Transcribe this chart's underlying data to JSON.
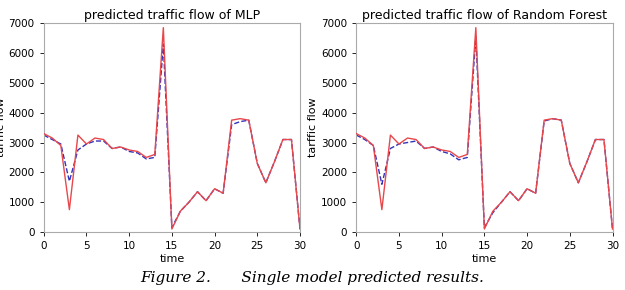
{
  "title_mlp": "predicted traffic flow of MLP",
  "title_rf": "predicted traffic flow of Random Forest",
  "xlabel": "time",
  "ylabel": "tarffic flow",
  "figure_caption": "Figure 2.  Single model predicted results.",
  "xlim": [
    0,
    30
  ],
  "ylim": [
    0,
    7000
  ],
  "xticks": [
    0,
    5,
    10,
    15,
    20,
    25,
    30
  ],
  "yticks": [
    0,
    1000,
    2000,
    3000,
    4000,
    5000,
    6000,
    7000
  ],
  "actual_x": [
    0,
    1,
    2,
    3,
    4,
    5,
    6,
    7,
    8,
    9,
    10,
    11,
    12,
    13,
    14,
    15,
    16,
    17,
    18,
    19,
    20,
    21,
    22,
    23,
    24,
    25,
    26,
    27,
    28,
    29,
    30
  ],
  "actual_y": [
    3300,
    3150,
    2900,
    750,
    3250,
    2950,
    3150,
    3100,
    2800,
    2850,
    2750,
    2700,
    2500,
    2600,
    6850,
    100,
    700,
    1000,
    1350,
    1050,
    1450,
    1300,
    3750,
    3800,
    3750,
    2300,
    1650,
    2350,
    3100,
    3100,
    100
  ],
  "mlp_pred_y": [
    3250,
    3100,
    2950,
    1700,
    2750,
    2950,
    3050,
    3050,
    2800,
    2850,
    2700,
    2650,
    2450,
    2500,
    6300,
    150,
    700,
    1000,
    1350,
    1050,
    1450,
    1300,
    3600,
    3700,
    3750,
    2300,
    1650,
    2350,
    3100,
    3100,
    100
  ],
  "rf_pred_y": [
    3250,
    3100,
    2900,
    1600,
    2800,
    2950,
    3000,
    3050,
    2800,
    2850,
    2700,
    2620,
    2420,
    2500,
    6550,
    150,
    650,
    1000,
    1350,
    1050,
    1450,
    1300,
    3720,
    3800,
    3750,
    2300,
    1650,
    2350,
    3100,
    3100,
    100
  ],
  "actual_color": "#e8474b",
  "pred_color": "#3333bb",
  "actual_lw": 1.0,
  "pred_lw": 1.0,
  "pred_linestyle": "--",
  "bg_color": "#ffffff",
  "title_fontsize": 9,
  "label_fontsize": 8,
  "tick_fontsize": 7.5,
  "caption_fontsize": 11
}
